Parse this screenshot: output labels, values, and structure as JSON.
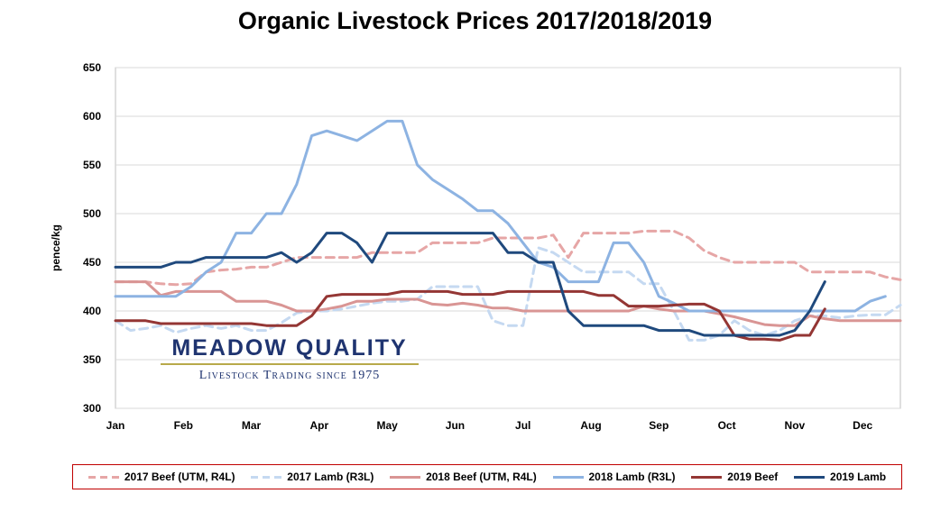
{
  "chart_data": {
    "type": "line",
    "title": "Organic Livestock Prices 2017/2018/2019",
    "xlabel": "",
    "ylabel": "pence/kg",
    "ylim": [
      300,
      650
    ],
    "yticks": [
      300,
      350,
      400,
      450,
      500,
      550,
      600,
      650
    ],
    "xlim": [
      1,
      53
    ],
    "x_tick_labels": [
      "Jan",
      "Feb",
      "Mar",
      "Apr",
      "May",
      "Jun",
      "Jul",
      "Aug",
      "Sep",
      "Oct",
      "Nov",
      "Dec"
    ],
    "x_tick_weeks": [
      1,
      5.5,
      10,
      14.5,
      19,
      23.5,
      28,
      32.5,
      37,
      41.5,
      46,
      50.5
    ],
    "x_unit": "week",
    "grid": "horizontal",
    "legend_position": "bottom",
    "series": [
      {
        "name": "2017 Beef (UTM, R4L)",
        "color": "#e6a6a6",
        "dash": "dashed",
        "x": [
          1,
          2,
          3,
          4,
          5,
          6,
          7,
          8,
          9,
          10,
          11,
          12,
          13,
          14,
          15,
          16,
          17,
          18,
          19,
          20,
          21,
          22,
          23,
          24,
          25,
          26,
          27,
          28,
          29,
          30,
          31,
          32,
          33,
          34,
          35,
          36,
          37,
          38,
          39,
          40,
          41,
          42,
          43,
          44,
          45,
          46,
          47,
          48,
          49,
          50,
          51,
          52,
          53
        ],
        "values": [
          430,
          430,
          430,
          428,
          427,
          428,
          440,
          442,
          443,
          445,
          445,
          450,
          455,
          455,
          455,
          455,
          455,
          460,
          460,
          460,
          460,
          470,
          470,
          470,
          470,
          475,
          475,
          475,
          475,
          478,
          455,
          480,
          480,
          480,
          480,
          482,
          482,
          482,
          475,
          462,
          455,
          450,
          450,
          450,
          450,
          450,
          440,
          440,
          440,
          440,
          440,
          435,
          432
        ]
      },
      {
        "name": "2017 Lamb (R3L)",
        "color": "#c5d9f1",
        "dash": "dashed",
        "x": [
          1,
          2,
          3,
          4,
          5,
          6,
          7,
          8,
          9,
          10,
          11,
          12,
          13,
          14,
          15,
          16,
          17,
          18,
          19,
          20,
          21,
          22,
          23,
          24,
          25,
          26,
          27,
          28,
          29,
          30,
          31,
          32,
          33,
          34,
          35,
          36,
          37,
          38,
          39,
          40,
          41,
          42,
          43,
          44,
          45,
          46,
          47,
          48,
          49,
          50,
          51,
          52,
          53
        ],
        "values": [
          390,
          380,
          382,
          385,
          378,
          382,
          385,
          382,
          385,
          380,
          380,
          388,
          398,
          400,
          400,
          402,
          405,
          408,
          410,
          410,
          412,
          425,
          425,
          425,
          425,
          390,
          385,
          385,
          465,
          460,
          450,
          440,
          440,
          440,
          440,
          428,
          428,
          400,
          370,
          370,
          375,
          390,
          380,
          375,
          380,
          390,
          395,
          395,
          393,
          395,
          396,
          396,
          406
        ]
      },
      {
        "name": "2018 Beef (UTM, R4L)",
        "color": "#d99594",
        "dash": "solid",
        "x": [
          1,
          2,
          3,
          4,
          5,
          6,
          7,
          8,
          9,
          10,
          11,
          12,
          13,
          14,
          15,
          16,
          17,
          18,
          19,
          20,
          21,
          22,
          23,
          24,
          25,
          26,
          27,
          28,
          29,
          30,
          31,
          32,
          33,
          34,
          35,
          36,
          37,
          38,
          39,
          40,
          41,
          42,
          43,
          44,
          45,
          46,
          47,
          48,
          49,
          50,
          51,
          52,
          53
        ],
        "values": [
          430,
          430,
          430,
          416,
          420,
          420,
          420,
          420,
          410,
          410,
          410,
          406,
          400,
          400,
          402,
          405,
          410,
          410,
          412,
          412,
          412,
          407,
          406,
          408,
          406,
          403,
          403,
          400,
          400,
          400,
          400,
          400,
          400,
          400,
          400,
          405,
          402,
          400,
          400,
          400,
          397,
          394,
          390,
          386,
          385,
          385,
          395,
          392,
          390,
          390,
          390,
          390,
          390
        ]
      },
      {
        "name": "2018 Lamb (R3L)",
        "color": "#8db3e2",
        "dash": "solid",
        "x": [
          1,
          2,
          3,
          4,
          5,
          6,
          7,
          8,
          9,
          10,
          11,
          12,
          13,
          14,
          15,
          16,
          17,
          18,
          19,
          20,
          21,
          22,
          23,
          24,
          25,
          26,
          27,
          28,
          29,
          30,
          31,
          32,
          33,
          34,
          35,
          36,
          37,
          38,
          39,
          40,
          41,
          42,
          43,
          44,
          45,
          46,
          47,
          48,
          49,
          50,
          51,
          52
        ],
        "values": [
          415,
          415,
          415,
          415,
          415,
          425,
          440,
          450,
          480,
          480,
          500,
          500,
          530,
          580,
          585,
          580,
          575,
          585,
          595,
          595,
          550,
          535,
          525,
          515,
          503,
          503,
          490,
          470,
          450,
          445,
          430,
          430,
          430,
          470,
          470,
          450,
          415,
          408,
          400,
          400,
          400,
          400,
          400,
          400,
          400,
          400,
          400,
          400,
          400,
          400,
          410,
          415
        ]
      },
      {
        "name": "2019 Beef",
        "color": "#943634",
        "dash": "solid",
        "x": [
          1,
          2,
          3,
          4,
          5,
          6,
          7,
          8,
          9,
          10,
          11,
          12,
          13,
          14,
          15,
          16,
          17,
          18,
          19,
          20,
          21,
          22,
          23,
          24,
          25,
          26,
          27,
          28,
          29,
          30,
          31,
          32,
          33,
          34,
          35,
          36,
          37,
          38,
          39,
          40,
          41,
          42,
          43,
          44,
          45,
          46,
          47,
          48
        ],
        "values": [
          390,
          390,
          390,
          387,
          387,
          387,
          387,
          387,
          387,
          387,
          385,
          385,
          385,
          395,
          415,
          417,
          417,
          417,
          417,
          420,
          420,
          420,
          420,
          417,
          417,
          417,
          420,
          420,
          420,
          420,
          420,
          420,
          416,
          416,
          405,
          405,
          405,
          406,
          407,
          407,
          400,
          375,
          371,
          371,
          370,
          375,
          375,
          402
        ]
      },
      {
        "name": "2019 Lamb",
        "color": "#1f497d",
        "dash": "solid",
        "x": [
          1,
          2,
          3,
          4,
          5,
          6,
          7,
          8,
          9,
          10,
          11,
          12,
          13,
          14,
          15,
          16,
          17,
          18,
          19,
          20,
          21,
          22,
          23,
          24,
          25,
          26,
          27,
          28,
          29,
          30,
          31,
          32,
          33,
          34,
          35,
          36,
          37,
          38,
          39,
          40,
          41,
          42,
          43,
          44,
          45,
          46,
          47,
          48
        ],
        "values": [
          445,
          445,
          445,
          445,
          450,
          450,
          455,
          455,
          455,
          455,
          455,
          460,
          450,
          460,
          480,
          480,
          470,
          450,
          480,
          480,
          480,
          480,
          480,
          480,
          480,
          480,
          460,
          460,
          450,
          450,
          400,
          385,
          385,
          385,
          385,
          385,
          380,
          380,
          380,
          375,
          375,
          375,
          375,
          375,
          375,
          380,
          400,
          430
        ]
      }
    ]
  },
  "logo": {
    "name": "MEADOW QUALITY",
    "tagline": "Livestock Trading since 1975"
  }
}
